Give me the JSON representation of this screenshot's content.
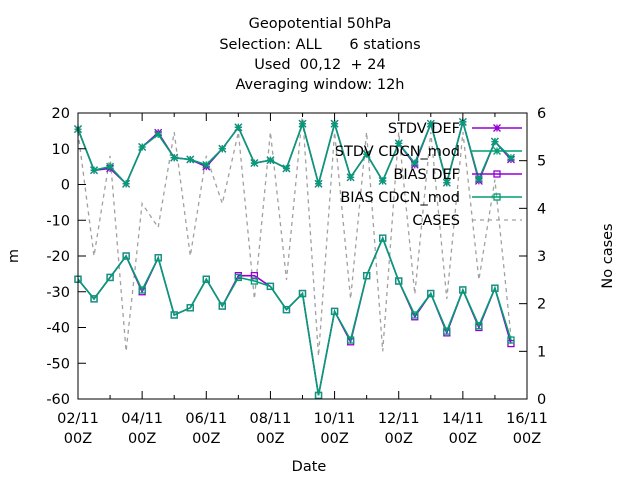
{
  "chart_data": {
    "type": "line",
    "title_lines": [
      "Geopotential 50hPa",
      "Selection: ALL      6 stations",
      "Used  00,12  + 24",
      "Averaging window: 12h"
    ],
    "xlabel": "Date",
    "ylabel": "m",
    "y2label": "No cases",
    "xlim": [
      0,
      14
    ],
    "ylim": [
      -60,
      20
    ],
    "y2lim": [
      0,
      6
    ],
    "x_ticks": [
      {
        "x": 0,
        "line1": "02/11",
        "line2": "00Z"
      },
      {
        "x": 2,
        "line1": "04/11",
        "line2": "00Z"
      },
      {
        "x": 4,
        "line1": "06/11",
        "line2": "00Z"
      },
      {
        "x": 6,
        "line1": "08/11",
        "line2": "00Z"
      },
      {
        "x": 8,
        "line1": "10/11",
        "line2": "00Z"
      },
      {
        "x": 10,
        "line1": "12/11",
        "line2": "00Z"
      },
      {
        "x": 12,
        "line1": "14/11",
        "line2": "00Z"
      },
      {
        "x": 14,
        "line1": "16/11",
        "line2": "00Z"
      }
    ],
    "y_ticks": [
      20,
      10,
      0,
      -10,
      -20,
      -30,
      -40,
      -50,
      -60
    ],
    "y2_ticks": [
      6,
      5,
      4,
      3,
      2,
      1,
      0
    ],
    "grid": false,
    "legend_position": "top-right",
    "x": [
      0,
      0.5,
      1,
      1.5,
      2,
      2.5,
      3,
      3.5,
      4,
      4.5,
      5,
      5.5,
      6,
      6.5,
      7,
      7.5,
      8,
      8.5,
      9,
      9.5,
      10,
      10.5,
      11,
      11.5,
      12,
      12.5,
      13,
      13.5
    ],
    "series": [
      {
        "name": "STDV DEF",
        "axis": "y",
        "color": "#9400d3",
        "marker": "star",
        "values": [
          15.5,
          4,
          4.5,
          0.2,
          10.5,
          14.5,
          7.5,
          7,
          5,
          10,
          16,
          6,
          6.8,
          4.5,
          17,
          0.2,
          17,
          2,
          8.5,
          1,
          11.5,
          5.5,
          17,
          0.5,
          17.5,
          1,
          12,
          7
        ]
      },
      {
        "name": "STDV CDCN_mod",
        "axis": "y",
        "color": "#009e73",
        "marker": "star",
        "values": [
          15.5,
          4,
          5,
          0.2,
          10.5,
          14,
          7.5,
          7,
          5.5,
          10,
          16,
          6,
          6.8,
          4.5,
          17,
          0.2,
          17,
          2,
          8.5,
          1,
          11.5,
          6,
          17,
          0.5,
          17.5,
          1.5,
          12,
          7.5
        ]
      },
      {
        "name": "BIAS DEF",
        "axis": "y",
        "color": "#9400d3",
        "marker": "square",
        "values": [
          -26.5,
          -32,
          -26,
          -20,
          -30,
          -20.5,
          -36.5,
          -34.5,
          -26.5,
          -34,
          -25.5,
          -25.5,
          -28.5,
          -35,
          -30.5,
          -59,
          -35.5,
          -44,
          -25.5,
          -15,
          -27,
          -37,
          -30.5,
          -41.5,
          -29.5,
          -40,
          -29,
          -44.5
        ]
      },
      {
        "name": "BIAS CDCN_mod",
        "axis": "y",
        "color": "#009e73",
        "marker": "square",
        "values": [
          -26.5,
          -32,
          -26,
          -20,
          -29.5,
          -20.5,
          -36.5,
          -34.5,
          -26.5,
          -34,
          -26,
          -27,
          -28.5,
          -35,
          -30.5,
          -59,
          -35.5,
          -43.5,
          -25.5,
          -15,
          -27,
          -36.5,
          -30.5,
          -41,
          -29.5,
          -39.5,
          -29,
          -43.5
        ]
      },
      {
        "name": "CASES",
        "axis": "y2",
        "color": "#a0a0a0",
        "dashed": true,
        "values": [
          5.6,
          3,
          5.1,
          1,
          4.1,
          3.6,
          5.6,
          3,
          5.1,
          4.1,
          5.6,
          2.1,
          5.6,
          2.5,
          6,
          0.9,
          5.6,
          2.1,
          5.6,
          1,
          5.6,
          2.2,
          5.6,
          2.1,
          5.6,
          2.5,
          4.6,
          1.3
        ]
      }
    ]
  }
}
